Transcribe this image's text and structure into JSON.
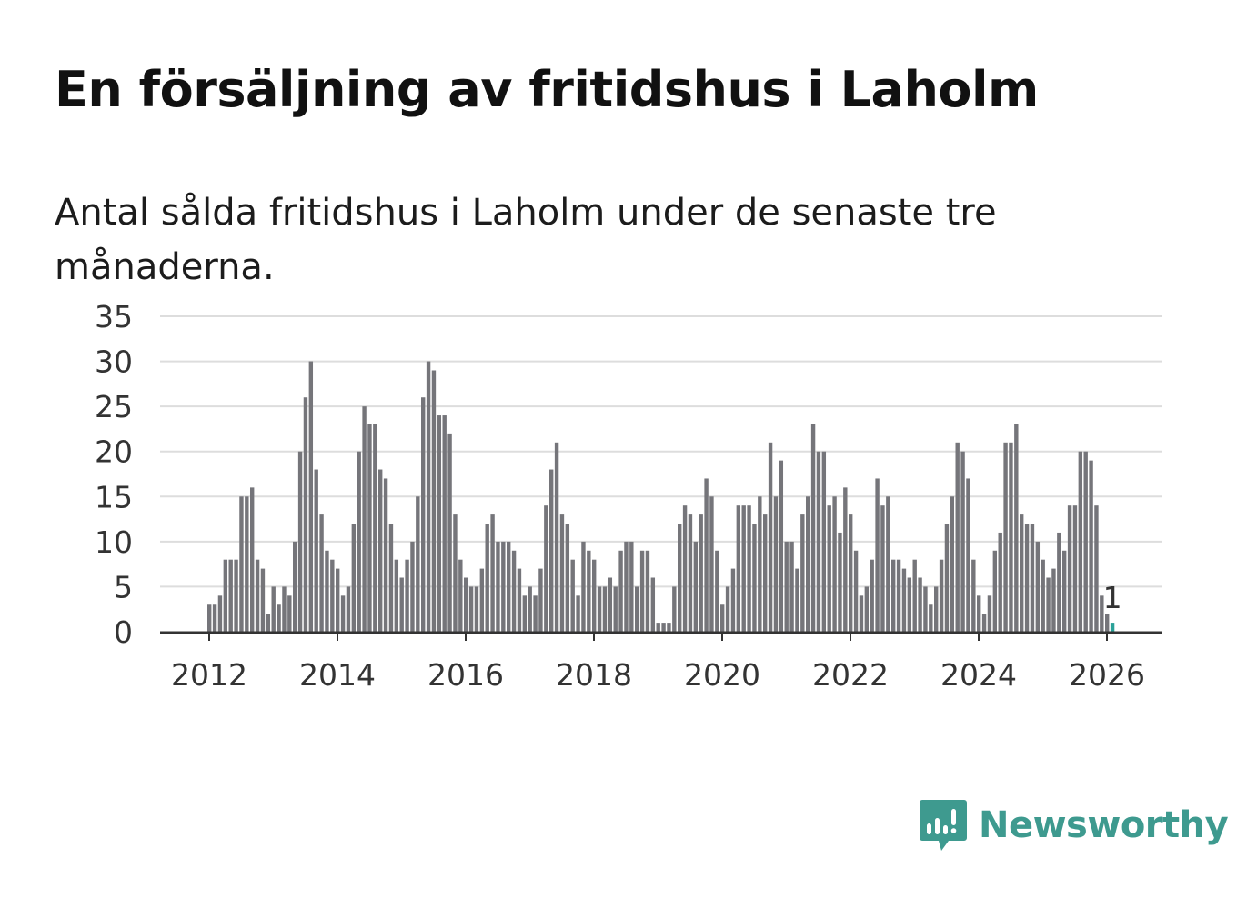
{
  "header": {
    "title": "En försäljning av fritidshus i Laholm",
    "subtitle": "Antal sålda fritidshus i Laholm under de senaste tre månaderna."
  },
  "brand": {
    "name": "Newsworthy",
    "color": "#3e9a8f"
  },
  "colors": {
    "bar": "#75757a",
    "highlight": "#2aa198",
    "grid": "#dddddd",
    "axis": "#333333"
  },
  "chart_data": {
    "type": "bar",
    "x_unit": "month",
    "start": "2012-01",
    "end": "2026-01",
    "values": [
      3,
      3,
      4,
      8,
      8,
      8,
      15,
      15,
      16,
      8,
      7,
      2,
      5,
      3,
      5,
      4,
      10,
      20,
      26,
      30,
      18,
      13,
      9,
      8,
      7,
      4,
      5,
      12,
      20,
      25,
      23,
      23,
      18,
      17,
      12,
      8,
      6,
      8,
      10,
      15,
      26,
      30,
      29,
      24,
      24,
      22,
      13,
      8,
      6,
      5,
      5,
      7,
      12,
      13,
      10,
      10,
      10,
      9,
      7,
      4,
      5,
      4,
      7,
      14,
      18,
      21,
      13,
      12,
      8,
      4,
      10,
      9,
      8,
      5,
      5,
      6,
      5,
      9,
      10,
      10,
      5,
      9,
      9,
      6,
      1,
      1,
      1,
      5,
      12,
      14,
      13,
      10,
      13,
      17,
      15,
      9,
      3,
      5,
      7,
      14,
      14,
      14,
      12,
      15,
      13,
      21,
      15,
      19,
      10,
      10,
      7,
      13,
      15,
      23,
      20,
      20,
      14,
      15,
      11,
      16,
      13,
      9,
      4,
      5,
      8,
      17,
      14,
      15,
      8,
      8,
      7,
      6,
      8,
      6,
      5,
      3,
      5,
      8,
      12,
      15,
      21,
      20,
      17,
      8,
      4,
      2,
      4,
      9,
      11,
      21,
      21,
      23,
      13,
      12,
      12,
      10,
      8,
      6,
      7,
      11,
      9,
      14,
      14,
      20,
      20,
      19,
      14,
      4,
      2,
      1
    ],
    "highlight_last": true,
    "last_label": "1",
    "yticks": [
      0,
      5,
      10,
      15,
      20,
      25,
      30,
      35
    ],
    "xticks": [
      "2012",
      "2014",
      "2016",
      "2018",
      "2020",
      "2022",
      "2024",
      "2026"
    ],
    "ylim": [
      0,
      35
    ],
    "grid": true,
    "legend": "none"
  }
}
